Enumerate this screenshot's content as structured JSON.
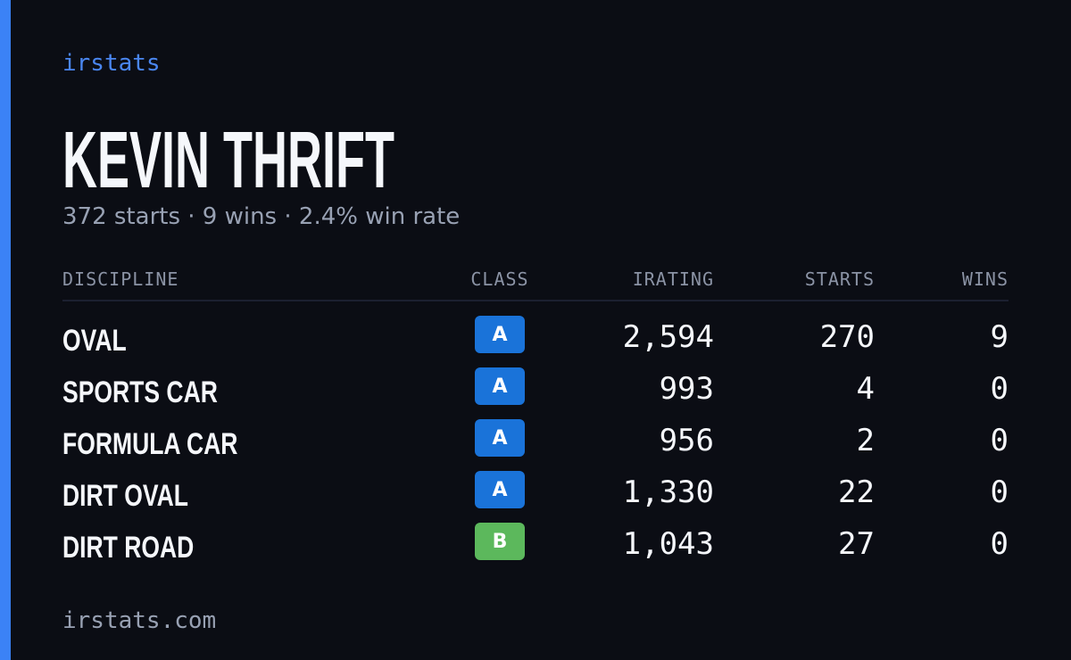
{
  "brand": "irstats",
  "name": "KEVIN THRIFT",
  "summary": "372 starts · 9 wins · 2.4% win rate",
  "table": {
    "headers": [
      "DISCIPLINE",
      "CLASS",
      "IRATING",
      "STARTS",
      "WINS"
    ],
    "rows": [
      {
        "discipline": "OVAL",
        "class": "A",
        "class_color": "#1a73d9",
        "irating": "2,594",
        "starts": "270",
        "wins": "9"
      },
      {
        "discipline": "SPORTS CAR",
        "class": "A",
        "class_color": "#1a73d9",
        "irating": "993",
        "starts": "4",
        "wins": "0"
      },
      {
        "discipline": "FORMULA CAR",
        "class": "A",
        "class_color": "#1a73d9",
        "irating": "956",
        "starts": "2",
        "wins": "0"
      },
      {
        "discipline": "DIRT OVAL",
        "class": "A",
        "class_color": "#1a73d9",
        "irating": "1,330",
        "starts": "22",
        "wins": "0"
      },
      {
        "discipline": "DIRT ROAD",
        "class": "B",
        "class_color": "#5cb85c",
        "irating": "1,043",
        "starts": "27",
        "wins": "0"
      }
    ]
  },
  "footer": "irstats.com"
}
